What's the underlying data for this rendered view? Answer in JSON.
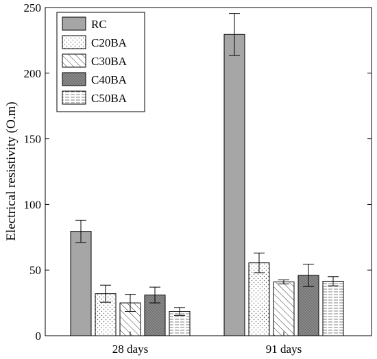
{
  "chart_data": {
    "type": "bar",
    "title": "",
    "xlabel": "",
    "ylabel": "Electrical resistivity (O.m)",
    "ylim": [
      0,
      250
    ],
    "yticks": [
      0,
      50,
      100,
      150,
      200,
      250
    ],
    "categories": [
      "28 days",
      "91 days"
    ],
    "grid": false,
    "legend_position": "top-left",
    "series": [
      {
        "name": "RC",
        "values": [
          79.5,
          229.5
        ],
        "errors": [
          8.5,
          16
        ],
        "pattern": "solid",
        "color": "#a6a6a6"
      },
      {
        "name": "C20BA",
        "values": [
          32,
          55.5
        ],
        "errors": [
          6.5,
          7.5
        ],
        "pattern": "dots",
        "color": "#ffffff"
      },
      {
        "name": "C30BA",
        "values": [
          25,
          41
        ],
        "errors": [
          6.5,
          1.5
        ],
        "pattern": "diagonal",
        "color": "#ffffff"
      },
      {
        "name": "C40BA",
        "values": [
          31,
          46
        ],
        "errors": [
          6,
          8.5
        ],
        "pattern": "densedots",
        "color": "#7f7f7f"
      },
      {
        "name": "C50BA",
        "values": [
          18.5,
          41.5
        ],
        "errors": [
          3,
          3.5
        ],
        "pattern": "hlines",
        "color": "#ffffff"
      }
    ]
  }
}
